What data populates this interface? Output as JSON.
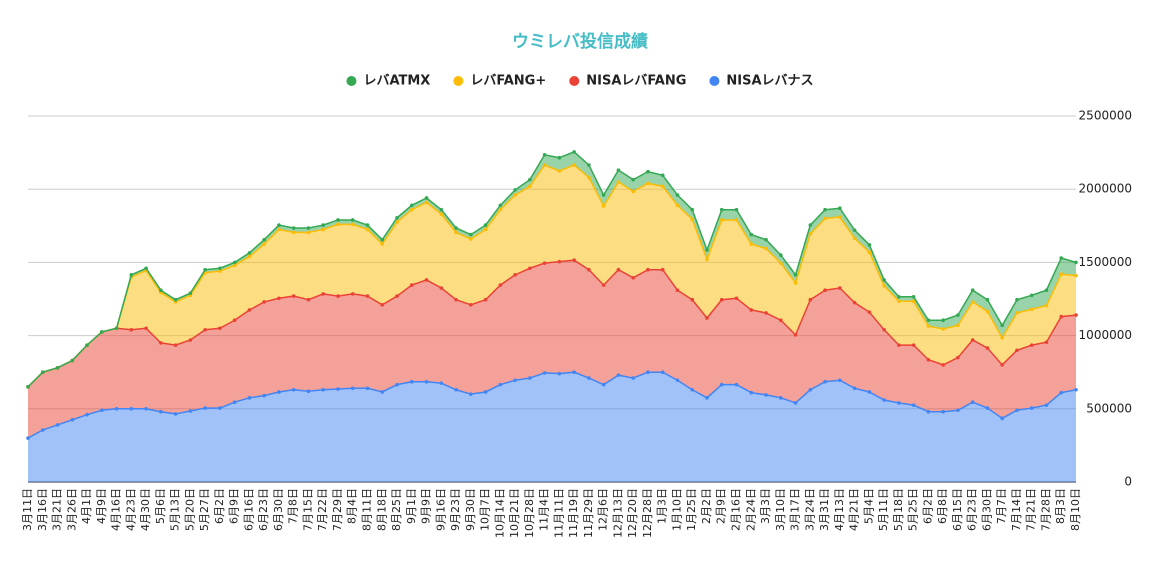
{
  "chart_data": {
    "type": "stacked-area",
    "title": "ウミレバ投信成績",
    "categories": [
      "3月11日",
      "3月16日",
      "3月21日",
      "3月26日",
      "4月1日",
      "4月9日",
      "4月16日",
      "4月23日",
      "4月30日",
      "5月6日",
      "5月13日",
      "5月20日",
      "5月27日",
      "6月2日",
      "6月9日",
      "6月16日",
      "6月23日",
      "6月30日",
      "7月8日",
      "7月15日",
      "7月22日",
      "7月29日",
      "8月4日",
      "8月11日",
      "8月18日",
      "8月25日",
      "9月1日",
      "9月9日",
      "9月16日",
      "9月23日",
      "9月30日",
      "10月7日",
      "10月14日",
      "10月21日",
      "10月28日",
      "11月4日",
      "11月11日",
      "11月19日",
      "11月29日",
      "12月6日",
      "12月13日",
      "12月20日",
      "12月28日",
      "1月3日",
      "1月10日",
      "1月25日",
      "2月2日",
      "2月9日",
      "2月16日",
      "2月24日",
      "3月3日",
      "3月10日",
      "3月17日",
      "3月24日",
      "3月31日",
      "4月13日",
      "4月21日",
      "5月4日",
      "5月11日",
      "5月18日",
      "5月25日",
      "6月2日",
      "6月8日",
      "6月15日",
      "6月23日",
      "6月30日",
      "7月7日",
      "7月14日",
      "7月21日",
      "7月28日",
      "8月3日",
      "8月10日"
    ],
    "series": [
      {
        "name": "レバATMX",
        "color": "#34a853",
        "values": [
          0,
          0,
          0,
          0,
          0,
          0,
          0,
          15000,
          15000,
          15000,
          15000,
          15000,
          20000,
          20000,
          20000,
          25000,
          30000,
          30000,
          30000,
          30000,
          30000,
          30000,
          30000,
          30000,
          30000,
          30000,
          30000,
          30000,
          30000,
          30000,
          30000,
          30000,
          30000,
          35000,
          45000,
          70000,
          90000,
          90000,
          85000,
          75000,
          80000,
          80000,
          80000,
          75000,
          70000,
          65000,
          65000,
          70000,
          70000,
          65000,
          60000,
          55000,
          55000,
          60000,
          60000,
          60000,
          55000,
          50000,
          40000,
          30000,
          30000,
          40000,
          60000,
          70000,
          80000,
          80000,
          85000,
          90000,
          95000,
          105000,
          110000,
          90000
        ]
      },
      {
        "name": "レバFANG+",
        "color": "#fbbc04",
        "values": [
          0,
          0,
          0,
          0,
          0,
          0,
          0,
          360000,
          395000,
          345000,
          295000,
          305000,
          390000,
          390000,
          375000,
          365000,
          395000,
          470000,
          435000,
          460000,
          440000,
          490000,
          475000,
          455000,
          415000,
          505000,
          515000,
          530000,
          505000,
          460000,
          450000,
          480000,
          515000,
          545000,
          560000,
          670000,
          620000,
          650000,
          630000,
          540000,
          600000,
          590000,
          590000,
          570000,
          580000,
          550000,
          400000,
          545000,
          535000,
          450000,
          440000,
          390000,
          355000,
          450000,
          490000,
          485000,
          440000,
          410000,
          300000,
          300000,
          300000,
          230000,
          245000,
          220000,
          260000,
          250000,
          185000,
          255000,
          245000,
          250000,
          290000,
          270000
        ]
      },
      {
        "name": "NISAレバFANG",
        "color": "#ea4335",
        "values": [
          350000,
          395000,
          390000,
          405000,
          475000,
          535000,
          550000,
          540000,
          550000,
          470000,
          470000,
          485000,
          535000,
          545000,
          560000,
          600000,
          640000,
          640000,
          640000,
          625000,
          655000,
          635000,
          645000,
          630000,
          595000,
          605000,
          660000,
          695000,
          650000,
          615000,
          610000,
          630000,
          680000,
          720000,
          750000,
          750000,
          765000,
          765000,
          740000,
          680000,
          720000,
          685000,
          700000,
          700000,
          615000,
          615000,
          545000,
          580000,
          590000,
          565000,
          560000,
          530000,
          465000,
          615000,
          625000,
          630000,
          585000,
          545000,
          480000,
          395000,
          410000,
          355000,
          320000,
          360000,
          425000,
          410000,
          365000,
          410000,
          430000,
          430000,
          520000,
          510000
        ]
      },
      {
        "name": "NISAレバナス",
        "color": "#4285f4",
        "values": [
          300000,
          355000,
          390000,
          425000,
          460000,
          490000,
          500000,
          500000,
          500000,
          480000,
          465000,
          485000,
          505000,
          505000,
          545000,
          575000,
          590000,
          615000,
          630000,
          620000,
          630000,
          635000,
          640000,
          640000,
          615000,
          665000,
          685000,
          685000,
          675000,
          630000,
          600000,
          615000,
          665000,
          695000,
          710000,
          745000,
          740000,
          750000,
          710000,
          665000,
          730000,
          710000,
          750000,
          750000,
          695000,
          630000,
          575000,
          665000,
          665000,
          610000,
          595000,
          575000,
          540000,
          630000,
          685000,
          695000,
          640000,
          615000,
          560000,
          540000,
          525000,
          480000,
          480000,
          490000,
          545000,
          505000,
          435000,
          490000,
          505000,
          525000,
          610000,
          630000
        ]
      }
    ],
    "ylim": [
      0,
      2500000
    ],
    "yticks": [
      0,
      500000,
      1000000,
      1500000,
      2000000,
      2500000
    ],
    "grid": true
  }
}
